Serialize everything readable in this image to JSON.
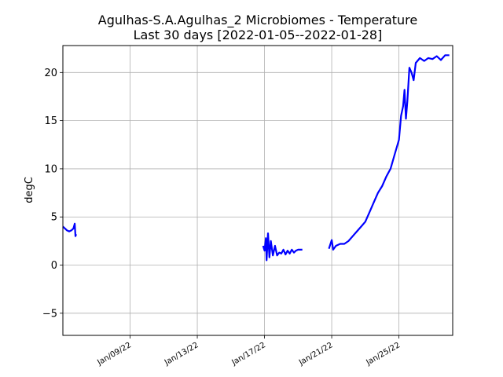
{
  "chart_data": {
    "type": "line",
    "title": "Agulhas-S.A.Agulhas_2 Microbiomes - Temperature",
    "subtitle": "Last 30 days [2022-01-05--2022-01-28]",
    "xlabel": "",
    "ylabel": "degC",
    "xlim": [
      "2022-01-05",
      "2022-01-28"
    ],
    "ylim": [
      -7.3,
      22.8
    ],
    "y_ticks": [
      -5,
      0,
      5,
      10,
      15,
      20
    ],
    "x_ticks": [
      {
        "date": "2022-01-09",
        "label": "Jan/09/22"
      },
      {
        "date": "2022-01-13",
        "label": "Jan/13/22"
      },
      {
        "date": "2022-01-17",
        "label": "Jan/17/22"
      },
      {
        "date": "2022-01-21",
        "label": "Jan/21/22"
      },
      {
        "date": "2022-01-25",
        "label": "Jan/25/22"
      }
    ],
    "grid": true,
    "series": [
      {
        "color": "#0000ff",
        "segments": [
          [
            [
              "2022-01-05T00:00",
              4.0
            ],
            [
              "2022-01-05T03:00",
              3.8
            ],
            [
              "2022-01-05T06:00",
              3.6
            ],
            [
              "2022-01-05T09:00",
              3.5
            ],
            [
              "2022-01-05T12:00",
              3.6
            ],
            [
              "2022-01-05T15:00",
              3.8
            ],
            [
              "2022-01-05T17:00",
              4.3
            ],
            [
              "2022-01-05T18:00",
              3.0
            ],
            [
              "2022-01-05T19:00",
              3.2
            ]
          ],
          [
            [
              "2022-01-16T22:00",
              2.0
            ],
            [
              "2022-01-17T00:00",
              1.5
            ],
            [
              "2022-01-17T02:00",
              2.8
            ],
            [
              "2022-01-17T03:00",
              0.5
            ],
            [
              "2022-01-17T05:00",
              3.3
            ],
            [
              "2022-01-17T07:00",
              0.8
            ],
            [
              "2022-01-17T09:00",
              2.5
            ],
            [
              "2022-01-17T12:00",
              1.0
            ],
            [
              "2022-01-17T15:00",
              2.0
            ],
            [
              "2022-01-17T18:00",
              1.0
            ],
            [
              "2022-01-17T21:00",
              1.3
            ],
            [
              "2022-01-18T00:00",
              1.2
            ],
            [
              "2022-01-18T03:00",
              1.6
            ],
            [
              "2022-01-18T06:00",
              1.1
            ],
            [
              "2022-01-18T09:00",
              1.5
            ],
            [
              "2022-01-18T12:00",
              1.2
            ],
            [
              "2022-01-18T15:00",
              1.6
            ],
            [
              "2022-01-18T18:00",
              1.3
            ],
            [
              "2022-01-18T21:00",
              1.5
            ],
            [
              "2022-01-19T00:00",
              1.6
            ],
            [
              "2022-01-19T06:00",
              1.6
            ]
          ],
          [
            [
              "2022-01-20T20:00",
              1.7
            ],
            [
              "2022-01-21T00:00",
              2.6
            ],
            [
              "2022-01-21T02:00",
              1.6
            ],
            [
              "2022-01-21T06:00",
              2.0
            ],
            [
              "2022-01-21T12:00",
              2.2
            ],
            [
              "2022-01-21T18:00",
              2.2
            ],
            [
              "2022-01-22T00:00",
              2.5
            ],
            [
              "2022-01-22T06:00",
              3.0
            ],
            [
              "2022-01-22T12:00",
              3.5
            ],
            [
              "2022-01-22T18:00",
              4.0
            ],
            [
              "2022-01-23T00:00",
              4.5
            ],
            [
              "2022-01-23T06:00",
              5.5
            ],
            [
              "2022-01-23T12:00",
              6.5
            ],
            [
              "2022-01-23T18:00",
              7.5
            ],
            [
              "2022-01-24T00:00",
              8.2
            ],
            [
              "2022-01-24T06:00",
              9.2
            ],
            [
              "2022-01-24T12:00",
              10.0
            ],
            [
              "2022-01-24T18:00",
              11.5
            ],
            [
              "2022-01-25T00:00",
              13.0
            ],
            [
              "2022-01-25T03:00",
              15.5
            ],
            [
              "2022-01-25T06:00",
              16.5
            ],
            [
              "2022-01-25T08:00",
              18.2
            ],
            [
              "2022-01-25T10:00",
              15.2
            ],
            [
              "2022-01-25T12:00",
              17.0
            ],
            [
              "2022-01-25T15:00",
              20.5
            ],
            [
              "2022-01-25T18:00",
              20.0
            ],
            [
              "2022-01-25T21:00",
              19.2
            ],
            [
              "2022-01-26T00:00",
              21.0
            ],
            [
              "2022-01-26T06:00",
              21.5
            ],
            [
              "2022-01-26T12:00",
              21.2
            ],
            [
              "2022-01-26T18:00",
              21.5
            ],
            [
              "2022-01-27T00:00",
              21.4
            ],
            [
              "2022-01-27T06:00",
              21.7
            ],
            [
              "2022-01-27T12:00",
              21.3
            ],
            [
              "2022-01-27T18:00",
              21.8
            ],
            [
              "2022-01-28T00:00",
              21.8
            ]
          ]
        ]
      }
    ]
  }
}
